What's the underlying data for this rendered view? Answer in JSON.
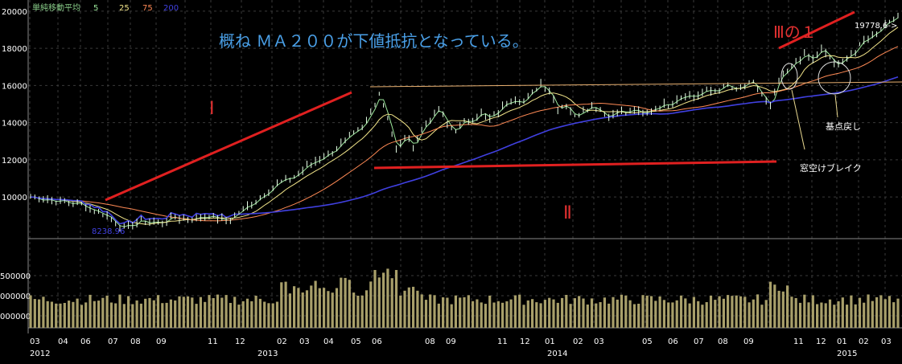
{
  "legend": {
    "title": "単純移動平均",
    "items": [
      {
        "label": "5",
        "color": "#9be79b"
      },
      {
        "label": "25",
        "color": "#f2e58a"
      },
      {
        "label": "75",
        "color": "#ff8a55"
      },
      {
        "label": "200",
        "color": "#4040e0"
      }
    ]
  },
  "annotations": {
    "headline": "概ね ＭＡ２００が下値抵抗となっている。",
    "trend_1": "Ⅰ",
    "trend_2": "Ⅱ",
    "trend_3": "Ⅲの１",
    "last_value": "19778.6->",
    "low_value": "8238.96",
    "gap_break": "窓空けブレイク",
    "pullback": "基点戻し"
  },
  "colors": {
    "background": "#000000",
    "grid": "#3a3a3a",
    "price": "#e8ffe8",
    "trendline": "#e02020",
    "resistance": "#e8b070",
    "volume": "#a89f6a",
    "annotation_text": "#4aa0e8",
    "axis_text": "#bbbbbb",
    "roman": "#e03030"
  },
  "chart_data": {
    "type": "line",
    "price_axis": {
      "ticks": [
        "20000",
        "18000",
        "16000",
        "14000",
        "12000",
        "10000"
      ],
      "ylim": [
        7800,
        20600
      ]
    },
    "volume_axis": {
      "ticks": [
        "500000",
        "000000",
        "000000"
      ],
      "ylim": [
        0,
        10000
      ]
    },
    "x_month_labels": [
      "03",
      "04",
      "06",
      "07",
      "08",
      "09",
      "11",
      "12",
      "02",
      "03",
      "04",
      "05",
      "06",
      "08",
      "09",
      "11",
      "12",
      "01",
      "02",
      "03",
      "05",
      "06",
      "07",
      "08",
      "09",
      "11",
      "12",
      "01",
      "02",
      "03"
    ],
    "x_year_labels": [
      "2012",
      "2013",
      "2014",
      "2015"
    ],
    "price_keypoints": [
      [
        0,
        10000
      ],
      [
        6,
        9800
      ],
      [
        12,
        9600
      ],
      [
        18,
        9000
      ],
      [
        22,
        8300
      ],
      [
        26,
        8700
      ],
      [
        30,
        8600
      ],
      [
        34,
        8900
      ],
      [
        38,
        8800
      ],
      [
        42,
        9000
      ],
      [
        46,
        8700
      ],
      [
        50,
        9300
      ],
      [
        54,
        10000
      ],
      [
        58,
        10700
      ],
      [
        62,
        11100
      ],
      [
        66,
        11800
      ],
      [
        70,
        12300
      ],
      [
        74,
        13000
      ],
      [
        78,
        13700
      ],
      [
        80,
        14500
      ],
      [
        82,
        15600
      ],
      [
        84,
        14300
      ],
      [
        86,
        12500
      ],
      [
        88,
        13200
      ],
      [
        90,
        12800
      ],
      [
        92,
        13600
      ],
      [
        94,
        14200
      ],
      [
        96,
        14700
      ],
      [
        98,
        13900
      ],
      [
        100,
        13600
      ],
      [
        102,
        14000
      ],
      [
        104,
        14200
      ],
      [
        106,
        14500
      ],
      [
        108,
        14200
      ],
      [
        110,
        14600
      ],
      [
        112,
        15100
      ],
      [
        114,
        15300
      ],
      [
        116,
        15100
      ],
      [
        118,
        15600
      ],
      [
        120,
        16100
      ],
      [
        122,
        15700
      ],
      [
        124,
        14800
      ],
      [
        126,
        15000
      ],
      [
        128,
        14300
      ],
      [
        130,
        14700
      ],
      [
        132,
        14900
      ],
      [
        134,
        14700
      ],
      [
        136,
        14300
      ],
      [
        138,
        14700
      ],
      [
        140,
        14500
      ],
      [
        142,
        14700
      ],
      [
        144,
        14400
      ],
      [
        146,
        14700
      ],
      [
        148,
        14900
      ],
      [
        150,
        15000
      ],
      [
        152,
        15300
      ],
      [
        154,
        15500
      ],
      [
        156,
        15400
      ],
      [
        158,
        15600
      ],
      [
        160,
        15700
      ],
      [
        162,
        15800
      ],
      [
        164,
        16000
      ],
      [
        166,
        15700
      ],
      [
        168,
        16000
      ],
      [
        170,
        16100
      ],
      [
        172,
        15500
      ],
      [
        174,
        14800
      ],
      [
        176,
        16300
      ],
      [
        178,
        16700
      ],
      [
        180,
        17300
      ],
      [
        182,
        17600
      ],
      [
        184,
        17400
      ],
      [
        186,
        17900
      ],
      [
        188,
        17500
      ],
      [
        190,
        17000
      ],
      [
        192,
        17600
      ],
      [
        194,
        17800
      ],
      [
        196,
        18400
      ],
      [
        198,
        18700
      ],
      [
        200,
        19100
      ],
      [
        202,
        19500
      ],
      [
        204,
        19778
      ]
    ],
    "series": [
      {
        "name": "5",
        "span": 5
      },
      {
        "name": "25",
        "span": 25
      },
      {
        "name": "75",
        "span": 75
      },
      {
        "name": "200",
        "span": 200
      }
    ]
  }
}
